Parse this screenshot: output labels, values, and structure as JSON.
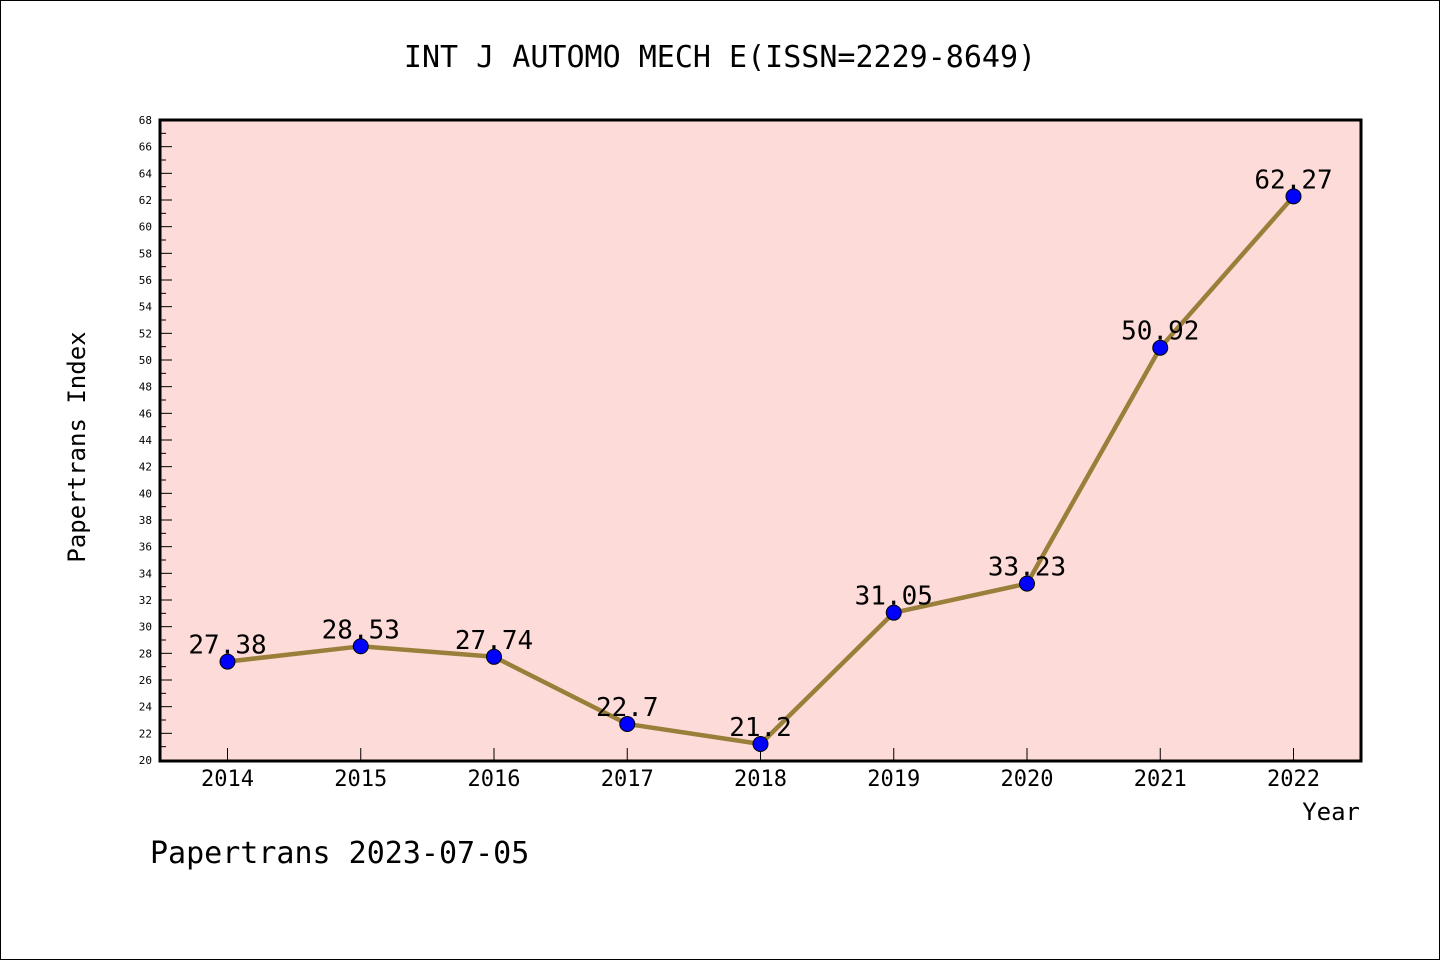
{
  "chart_data": {
    "type": "line",
    "title": "INT J AUTOMO MECH E(ISSN=2229-8649)",
    "xlabel": "Year",
    "ylabel": "Papertrans Index",
    "footer": "Papertrans 2023-07-05",
    "x": [
      "2014",
      "2015",
      "2016",
      "2017",
      "2018",
      "2019",
      "2020",
      "2021",
      "2022"
    ],
    "values": [
      27.38,
      28.53,
      27.74,
      22.7,
      21.2,
      31.05,
      33.23,
      50.92,
      62.27
    ],
    "value_labels": [
      "27.38",
      "28.53",
      "27.74",
      "22.7",
      "21.2",
      "31.05",
      "33.23",
      "50.92",
      "62.27"
    ],
    "ylim": [
      20,
      68
    ],
    "yticks": [
      "20",
      "22",
      "24",
      "26",
      "28",
      "30",
      "32",
      "34",
      "36",
      "38",
      "40",
      "42",
      "44",
      "46",
      "48",
      "50",
      "52",
      "54",
      "56",
      "58",
      "60",
      "62",
      "64",
      "66",
      "68"
    ],
    "grid": false,
    "colors": {
      "plot_background": "#fddbd8",
      "line": "#9a7f3a",
      "marker": "#0000ff"
    }
  }
}
